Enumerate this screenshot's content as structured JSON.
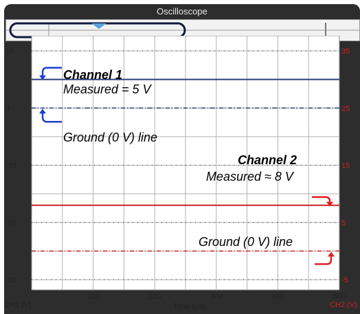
{
  "window": {
    "title": "Oscilloscope"
  },
  "axes": {
    "x_label": "Time (µs)",
    "left_label": "CH1 (V)",
    "right_label": "CH2 (V)",
    "x_ticks": [
      "100",
      "200",
      "300",
      "400",
      "500"
    ],
    "left_ticks": [
      "10",
      "0",
      "-10",
      "-20",
      "-30"
    ],
    "right_ticks": [
      "35",
      "25",
      "15",
      "5",
      "-5"
    ]
  },
  "annotations": {
    "ch1_title": "Channel 1",
    "ch1_measured": "Measured = 5 V",
    "ch1_ground": "Ground (0 V) line",
    "ch2_title": "Channel 2",
    "ch2_measured": "Measured ≈ 8 V",
    "ch2_ground": "Ground (0 V) line"
  },
  "colors": {
    "ch1": "#2a3f7a",
    "ch2": "#cc2222",
    "annotation_arrow_ch1": "#1f3fd0",
    "annotation_arrow_ch2": "#e02020",
    "grid": "#b0b0b0"
  },
  "chart_data": {
    "type": "line",
    "x": [
      0,
      500
    ],
    "xlim": [
      0,
      500
    ],
    "ylim_left": [
      -30,
      10
    ],
    "ylim_right": [
      -5,
      35
    ],
    "series": [
      {
        "name": "Channel 1",
        "axis": "left",
        "values": [
          5,
          5
        ],
        "style": "solid"
      },
      {
        "name": "Channel 1 ground",
        "axis": "left",
        "values": [
          0,
          0
        ],
        "style": "dashdot"
      },
      {
        "name": "Channel 2",
        "axis": "right",
        "values": [
          8,
          8
        ],
        "style": "solid"
      },
      {
        "name": "Channel 2 ground",
        "axis": "right",
        "values": [
          0,
          0
        ],
        "style": "dashdot"
      }
    ],
    "grid": true
  }
}
